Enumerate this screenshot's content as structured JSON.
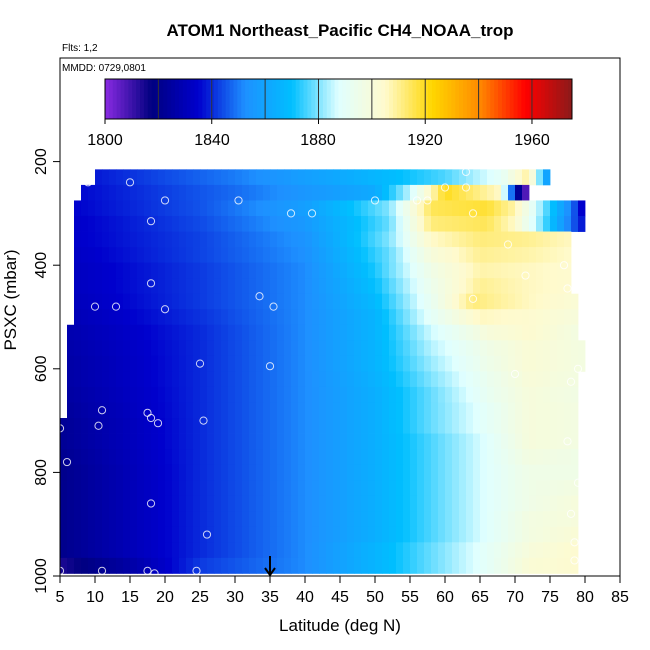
{
  "chart_data": {
    "type": "heatmap",
    "title": "ATOM1 Northeast_Pacific CH4_NOAA_trop",
    "annotations": {
      "flights": "Flts: 1,2",
      "dates": "MMDD: 0729,0801"
    },
    "xlabel": "Latitude (deg N)",
    "ylabel": "PSXC (mbar)",
    "xlim": [
      5,
      85
    ],
    "ylim": [
      1000,
      0
    ],
    "x_ticks": [
      "5",
      "10",
      "15",
      "20",
      "25",
      "30",
      "35",
      "40",
      "45",
      "50",
      "55",
      "60",
      "65",
      "70",
      "75",
      "80",
      "85"
    ],
    "y_ticks": [
      "200",
      "400",
      "600",
      "800",
      "1000"
    ],
    "colorbar": {
      "range": [
        1800,
        1975
      ],
      "ticks": [
        "1800",
        "1840",
        "1880",
        "1920",
        "1960"
      ],
      "boundaries": [
        1800,
        1820,
        1840,
        1860,
        1880,
        1900,
        1920,
        1940,
        1960,
        1975
      ],
      "colors": [
        "#8a2be2",
        "#000080",
        "#0000cd",
        "#1e90ff",
        "#00bfff",
        "#e0ffff",
        "#fffacd",
        "#ffd700",
        "#ff8c00",
        "#ff0000",
        "#8b1a1a"
      ]
    },
    "marker": {
      "latitude": 35,
      "label": "arrow"
    },
    "cell_height_mbar": 30,
    "rows": [
      {
        "p": 230,
        "x0": 10,
        "x1": 75,
        "profile": [
          [
            10,
            1838
          ],
          [
            30,
            1850
          ],
          [
            45,
            1862
          ],
          [
            60,
            1876
          ],
          [
            68,
            1890
          ],
          [
            72,
            1910
          ],
          [
            75,
            1850
          ]
        ]
      },
      {
        "p": 260,
        "x0": 8,
        "x1": 72,
        "profile": [
          [
            8,
            1836
          ],
          [
            30,
            1848
          ],
          [
            50,
            1862
          ],
          [
            55,
            1885
          ],
          [
            60,
            1920
          ],
          [
            68,
            1905
          ],
          [
            70,
            1830
          ],
          [
            72,
            1800
          ]
        ]
      },
      {
        "p": 290,
        "x0": 7,
        "x1": 80,
        "profile": [
          [
            7,
            1835
          ],
          [
            25,
            1845
          ],
          [
            40,
            1858
          ],
          [
            52,
            1880
          ],
          [
            58,
            1915
          ],
          [
            66,
            1918
          ],
          [
            70,
            1908
          ],
          [
            74,
            1880
          ],
          [
            78,
            1850
          ],
          [
            80,
            1830
          ]
        ]
      },
      {
        "p": 320,
        "x0": 7,
        "x1": 80,
        "profile": [
          [
            7,
            1834
          ],
          [
            25,
            1844
          ],
          [
            40,
            1856
          ],
          [
            52,
            1878
          ],
          [
            58,
            1912
          ],
          [
            66,
            1915
          ],
          [
            70,
            1905
          ],
          [
            74,
            1878
          ],
          [
            78,
            1848
          ],
          [
            80,
            1835
          ]
        ]
      },
      {
        "p": 350,
        "x0": 7,
        "x1": 78,
        "profile": [
          [
            7,
            1834
          ],
          [
            25,
            1843
          ],
          [
            40,
            1854
          ],
          [
            52,
            1880
          ],
          [
            58,
            1905
          ],
          [
            65,
            1912
          ],
          [
            72,
            1910
          ],
          [
            78,
            1906
          ]
        ]
      },
      {
        "p": 380,
        "x0": 7,
        "x1": 78,
        "profile": [
          [
            7,
            1833
          ],
          [
            25,
            1843
          ],
          [
            40,
            1853
          ],
          [
            52,
            1878
          ],
          [
            58,
            1900
          ],
          [
            65,
            1910
          ],
          [
            72,
            1908
          ],
          [
            78,
            1905
          ]
        ]
      },
      {
        "p": 410,
        "x0": 7,
        "x1": 78,
        "profile": [
          [
            7,
            1832
          ],
          [
            25,
            1842
          ],
          [
            40,
            1852
          ],
          [
            50,
            1872
          ],
          [
            58,
            1896
          ],
          [
            65,
            1908
          ],
          [
            72,
            1906
          ],
          [
            78,
            1904
          ]
        ]
      },
      {
        "p": 440,
        "x0": 7,
        "x1": 78,
        "profile": [
          [
            7,
            1832
          ],
          [
            25,
            1842
          ],
          [
            40,
            1852
          ],
          [
            50,
            1870
          ],
          [
            58,
            1894
          ],
          [
            65,
            1910
          ],
          [
            72,
            1906
          ],
          [
            78,
            1904
          ]
        ]
      },
      {
        "p": 470,
        "x0": 7,
        "x1": 79,
        "profile": [
          [
            7,
            1831
          ],
          [
            25,
            1842
          ],
          [
            40,
            1852
          ],
          [
            50,
            1868
          ],
          [
            58,
            1892
          ],
          [
            64,
            1912
          ],
          [
            72,
            1906
          ],
          [
            79,
            1902
          ]
        ]
      },
      {
        "p": 500,
        "x0": 7,
        "x1": 79,
        "profile": [
          [
            7,
            1830
          ],
          [
            25,
            1841
          ],
          [
            40,
            1852
          ],
          [
            50,
            1866
          ],
          [
            58,
            1890
          ],
          [
            65,
            1906
          ],
          [
            72,
            1904
          ],
          [
            79,
            1900
          ]
        ]
      },
      {
        "p": 530,
        "x0": 6,
        "x1": 79,
        "profile": [
          [
            6,
            1828
          ],
          [
            25,
            1840
          ],
          [
            40,
            1852
          ],
          [
            50,
            1866
          ],
          [
            58,
            1886
          ],
          [
            66,
            1900
          ],
          [
            72,
            1904
          ],
          [
            79,
            1898
          ]
        ]
      },
      {
        "p": 560,
        "x0": 6,
        "x1": 80,
        "profile": [
          [
            6,
            1827
          ],
          [
            25,
            1840
          ],
          [
            40,
            1852
          ],
          [
            50,
            1866
          ],
          [
            58,
            1884
          ],
          [
            66,
            1896
          ],
          [
            72,
            1902
          ],
          [
            80,
            1898
          ]
        ]
      },
      {
        "p": 590,
        "x0": 6,
        "x1": 80,
        "profile": [
          [
            6,
            1826
          ],
          [
            25,
            1840
          ],
          [
            40,
            1852
          ],
          [
            50,
            1866
          ],
          [
            58,
            1882
          ],
          [
            66,
            1895
          ],
          [
            72,
            1902
          ],
          [
            80,
            1898
          ]
        ]
      },
      {
        "p": 620,
        "x0": 6,
        "x1": 79,
        "profile": [
          [
            6,
            1826
          ],
          [
            25,
            1840
          ],
          [
            40,
            1852
          ],
          [
            50,
            1865
          ],
          [
            58,
            1880
          ],
          [
            66,
            1893
          ],
          [
            72,
            1901
          ],
          [
            79,
            1898
          ]
        ]
      },
      {
        "p": 650,
        "x0": 6,
        "x1": 79,
        "profile": [
          [
            6,
            1825
          ],
          [
            25,
            1840
          ],
          [
            40,
            1852
          ],
          [
            50,
            1864
          ],
          [
            58,
            1878
          ],
          [
            66,
            1892
          ],
          [
            72,
            1900
          ],
          [
            79,
            1897
          ]
        ]
      },
      {
        "p": 680,
        "x0": 6,
        "x1": 79,
        "profile": [
          [
            6,
            1824
          ],
          [
            25,
            1840
          ],
          [
            40,
            1852
          ],
          [
            50,
            1864
          ],
          [
            58,
            1878
          ],
          [
            66,
            1890
          ],
          [
            72,
            1900
          ],
          [
            79,
            1898
          ]
        ]
      },
      {
        "p": 710,
        "x0": 5,
        "x1": 79,
        "profile": [
          [
            5,
            1822
          ],
          [
            25,
            1840
          ],
          [
            40,
            1852
          ],
          [
            50,
            1864
          ],
          [
            58,
            1878
          ],
          [
            66,
            1890
          ],
          [
            72,
            1900
          ],
          [
            79,
            1898
          ]
        ]
      },
      {
        "p": 740,
        "x0": 5,
        "x1": 79,
        "profile": [
          [
            5,
            1822
          ],
          [
            25,
            1840
          ],
          [
            40,
            1852
          ],
          [
            50,
            1864
          ],
          [
            58,
            1876
          ],
          [
            66,
            1888
          ],
          [
            72,
            1900
          ],
          [
            79,
            1898
          ]
        ]
      },
      {
        "p": 770,
        "x0": 5,
        "x1": 79,
        "profile": [
          [
            5,
            1821
          ],
          [
            25,
            1840
          ],
          [
            40,
            1852
          ],
          [
            50,
            1864
          ],
          [
            58,
            1876
          ],
          [
            66,
            1888
          ],
          [
            72,
            1898
          ],
          [
            79,
            1896
          ]
        ]
      },
      {
        "p": 800,
        "x0": 5,
        "x1": 79,
        "profile": [
          [
            5,
            1820
          ],
          [
            25,
            1840
          ],
          [
            40,
            1852
          ],
          [
            50,
            1864
          ],
          [
            58,
            1876
          ],
          [
            66,
            1888
          ],
          [
            72,
            1896
          ],
          [
            79,
            1896
          ]
        ]
      },
      {
        "p": 830,
        "x0": 5,
        "x1": 79,
        "profile": [
          [
            5,
            1820
          ],
          [
            25,
            1840
          ],
          [
            40,
            1852
          ],
          [
            50,
            1864
          ],
          [
            58,
            1876
          ],
          [
            66,
            1888
          ],
          [
            72,
            1896
          ],
          [
            79,
            1898
          ]
        ]
      },
      {
        "p": 860,
        "x0": 5,
        "x1": 79,
        "profile": [
          [
            5,
            1820
          ],
          [
            25,
            1840
          ],
          [
            40,
            1852
          ],
          [
            50,
            1864
          ],
          [
            58,
            1876
          ],
          [
            66,
            1888
          ],
          [
            72,
            1896
          ],
          [
            79,
            1900
          ]
        ]
      },
      {
        "p": 890,
        "x0": 5,
        "x1": 79,
        "profile": [
          [
            5,
            1820
          ],
          [
            25,
            1840
          ],
          [
            40,
            1852
          ],
          [
            50,
            1864
          ],
          [
            58,
            1876
          ],
          [
            66,
            1888
          ],
          [
            72,
            1898
          ],
          [
            79,
            1900
          ]
        ]
      },
      {
        "p": 920,
        "x0": 5,
        "x1": 79,
        "profile": [
          [
            5,
            1820
          ],
          [
            25,
            1840
          ],
          [
            40,
            1852
          ],
          [
            50,
            1864
          ],
          [
            58,
            1876
          ],
          [
            66,
            1888
          ],
          [
            72,
            1898
          ],
          [
            79,
            1902
          ]
        ]
      },
      {
        "p": 950,
        "x0": 5,
        "x1": 79,
        "profile": [
          [
            5,
            1820
          ],
          [
            25,
            1840
          ],
          [
            40,
            1852
          ],
          [
            50,
            1866
          ],
          [
            58,
            1878
          ],
          [
            66,
            1890
          ],
          [
            72,
            1900
          ],
          [
            79,
            1904
          ]
        ]
      },
      {
        "p": 980,
        "x0": 5,
        "x1": 79,
        "profile": [
          [
            5,
            1814
          ],
          [
            15,
            1826
          ],
          [
            25,
            1842
          ],
          [
            40,
            1852
          ],
          [
            50,
            1866
          ],
          [
            58,
            1878
          ],
          [
            66,
            1890
          ],
          [
            72,
            1902
          ],
          [
            79,
            1904
          ]
        ]
      }
    ],
    "samples": [
      [
        9,
        240
      ],
      [
        15,
        240
      ],
      [
        20,
        275
      ],
      [
        30.5,
        275
      ],
      [
        38,
        300
      ],
      [
        41,
        300
      ],
      [
        50,
        275
      ],
      [
        56,
        275
      ],
      [
        57.5,
        275
      ],
      [
        60,
        250
      ],
      [
        63,
        220
      ],
      [
        63,
        250
      ],
      [
        64,
        300
      ],
      [
        69,
        360
      ],
      [
        71.5,
        420
      ],
      [
        77,
        400
      ],
      [
        7,
        265
      ],
      [
        18,
        315
      ],
      [
        18,
        435
      ],
      [
        10,
        480
      ],
      [
        13,
        480
      ],
      [
        20,
        485
      ],
      [
        33.5,
        460
      ],
      [
        35.5,
        480
      ],
      [
        64,
        465
      ],
      [
        77.5,
        445
      ],
      [
        25,
        590
      ],
      [
        35,
        595
      ],
      [
        70,
        610
      ],
      [
        78,
        625
      ],
      [
        79,
        600
      ],
      [
        11,
        680
      ],
      [
        17.5,
        685
      ],
      [
        18,
        695
      ],
      [
        19,
        705
      ],
      [
        10.5,
        710
      ],
      [
        25.5,
        700
      ],
      [
        5,
        715
      ],
      [
        77.5,
        740
      ],
      [
        6,
        780
      ],
      [
        79,
        820
      ],
      [
        18,
        860
      ],
      [
        26,
        920
      ],
      [
        78,
        880
      ],
      [
        78.5,
        935
      ],
      [
        78.5,
        970
      ],
      [
        5,
        990
      ],
      [
        11,
        990
      ],
      [
        17.5,
        990
      ],
      [
        18.5,
        995
      ],
      [
        24.5,
        990
      ]
    ]
  }
}
